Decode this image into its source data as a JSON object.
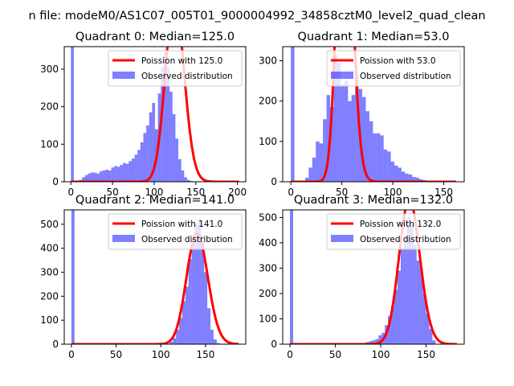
{
  "figure_title": "n file: modeM0/AS1C07_005T01_9000004992_34858cztM0_level2_quad_clean",
  "colors": {
    "observed": "#0000ff",
    "poisson": "#ff0000",
    "axis": "#000000"
  },
  "chart_data": [
    {
      "type": "bar",
      "title": "Quadrant 0: Median=125.0",
      "xlim": [
        -8,
        210
      ],
      "ylim": [
        0,
        360
      ],
      "xticks": [
        0,
        50,
        100,
        150,
        200
      ],
      "yticks": [
        0,
        100,
        200,
        300
      ],
      "bin_width": 3.5,
      "zero_bin": 360,
      "observed": {
        "name": "Observed distribution",
        "bins_start": 10,
        "values": [
          5,
          12,
          18,
          22,
          25,
          24,
          22,
          28,
          30,
          32,
          30,
          38,
          42,
          40,
          45,
          50,
          48,
          55,
          62,
          72,
          85,
          105,
          130,
          150,
          185,
          210,
          140,
          235,
          305,
          345,
          305,
          240,
          180,
          115,
          60,
          30,
          12,
          5,
          2
        ]
      },
      "poisson": {
        "name": "Poission with 125.0",
        "mean": 125.0
      }
    },
    {
      "type": "bar",
      "title": "Quadrant 1: Median=53.0",
      "xlim": [
        -8,
        170
      ],
      "ylim": [
        0,
        335
      ],
      "xticks": [
        0,
        50,
        100,
        150
      ],
      "yticks": [
        0,
        100,
        200,
        300
      ],
      "bin_width": 3.5,
      "zero_bin": 335,
      "observed": {
        "name": "Observed distribution",
        "bins_start": 14,
        "values": [
          10,
          35,
          60,
          100,
          95,
          155,
          215,
          185,
          315,
          295,
          240,
          250,
          200,
          215,
          265,
          230,
          210,
          175,
          150,
          120,
          120,
          115,
          80,
          75,
          50,
          40,
          35,
          25,
          20,
          18,
          12,
          10,
          6,
          4,
          2
        ]
      },
      "poisson": {
        "name": "Poission with 53.0",
        "mean": 53.0
      }
    },
    {
      "type": "bar",
      "title": "Quadrant 2: Median=141.0",
      "xlim": [
        -8,
        195
      ],
      "ylim": [
        0,
        560
      ],
      "xticks": [
        0,
        50,
        100,
        150
      ],
      "yticks": [
        0,
        100,
        200,
        300,
        400,
        500
      ],
      "bin_width": 3.5,
      "zero_bin": 560,
      "observed": {
        "name": "Observed distribution",
        "bins_start": 110,
        "values": [
          10,
          25,
          60,
          110,
          180,
          240,
          355,
          420,
          500,
          520,
          430,
          300,
          150,
          60,
          20,
          5
        ]
      },
      "poisson": {
        "name": "Poission with 141.0",
        "mean": 141.0
      }
    },
    {
      "type": "bar",
      "title": "Quadrant 3: Median=132.0",
      "xlim": [
        -8,
        192
      ],
      "ylim": [
        0,
        530
      ],
      "xticks": [
        0,
        50,
        100,
        150
      ],
      "yticks": [
        0,
        100,
        200,
        300,
        400,
        500
      ],
      "bin_width": 3.5,
      "zero_bin": 530,
      "observed": {
        "name": "Observed distribution",
        "bins_start": 80,
        "values": [
          4,
          8,
          12,
          15,
          20,
          35,
          45,
          75,
          110,
          150,
          215,
          290,
          380,
          430,
          500,
          470,
          390,
          330,
          300,
          200,
          120,
          60,
          15
        ]
      },
      "poisson": {
        "name": "Poission with 132.0",
        "mean": 132.0
      }
    }
  ]
}
